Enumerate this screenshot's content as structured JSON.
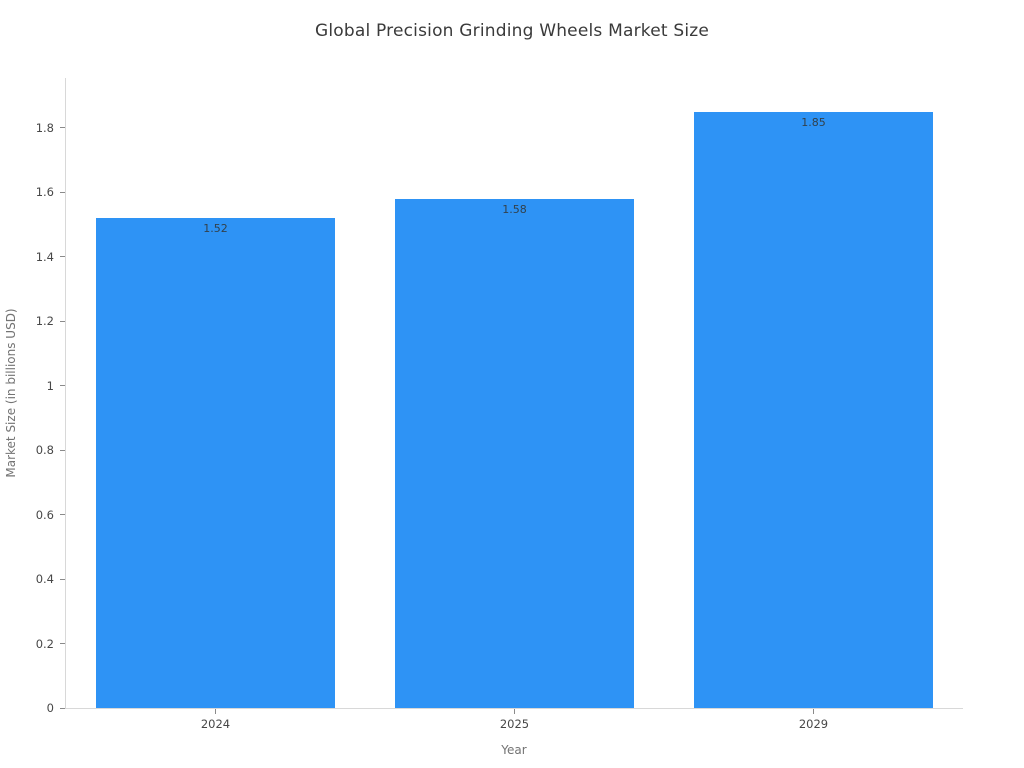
{
  "chart_data": {
    "type": "bar",
    "title": "Global Precision Grinding Wheels Market Size",
    "xlabel": "Year",
    "ylabel": "Market Size (in billions USD)",
    "categories": [
      "2024",
      "2025",
      "2029"
    ],
    "values": [
      1.52,
      1.58,
      1.85
    ],
    "value_labels": [
      "1.52",
      "1.58",
      "1.85"
    ],
    "ylim": [
      0,
      1.955
    ],
    "yticks": [
      0,
      0.2,
      0.4,
      0.6,
      0.8,
      1,
      1.2,
      1.4,
      1.6,
      1.8
    ],
    "ytick_labels": [
      "0",
      "0.2",
      "0.4",
      "0.6",
      "0.8",
      "1",
      "1.2",
      "1.4",
      "1.6",
      "1.8"
    ],
    "grid": false,
    "legend": null,
    "bar_width_fraction": 0.8,
    "colors": {
      "bar": "#2e93f5",
      "axis_line": "#d8d8d8",
      "tick_mark": "#8a8a8a",
      "tick_label": "#474747",
      "axis_title": "#737373",
      "chart_title": "#3a3a3a",
      "bar_value_label": "#32414b",
      "background": "#ffffff"
    }
  }
}
